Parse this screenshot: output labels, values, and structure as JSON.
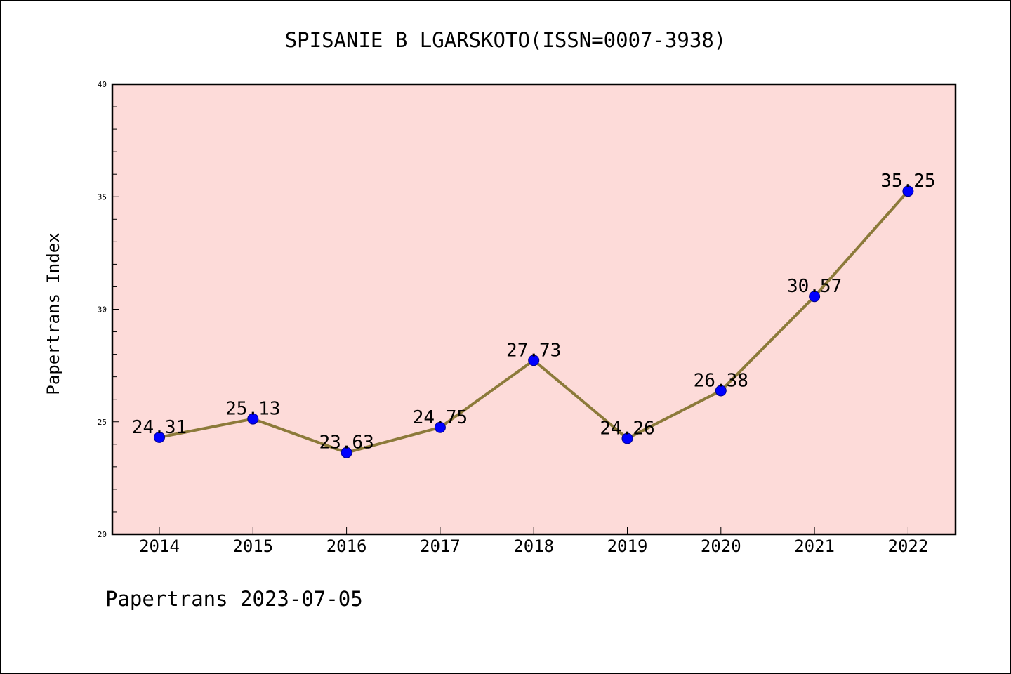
{
  "chart_data": {
    "type": "line",
    "title": "SPISANIE B LGARSKOTO(ISSN=0007-3938)",
    "xlabel": "",
    "ylabel": "Papertrans Index",
    "ylim": [
      20,
      40
    ],
    "yticks": [
      20,
      25,
      30,
      35,
      40
    ],
    "categories": [
      "2014",
      "2015",
      "2016",
      "2017",
      "2018",
      "2019",
      "2020",
      "2021",
      "2022"
    ],
    "values": [
      24.31,
      25.13,
      23.63,
      24.75,
      27.73,
      24.26,
      26.38,
      30.57,
      35.25
    ],
    "value_labels": [
      "24.31",
      "25.13",
      "23.63",
      "24.75",
      "27.73",
      "24.26",
      "26.38",
      "30.57",
      "35.25"
    ],
    "grid": false,
    "legend": "none"
  },
  "footer": "Papertrans 2023-07-05",
  "colors": {
    "plot_background": "#fddbd9",
    "line": "#8c7a3a",
    "marker": "#0000ff"
  }
}
